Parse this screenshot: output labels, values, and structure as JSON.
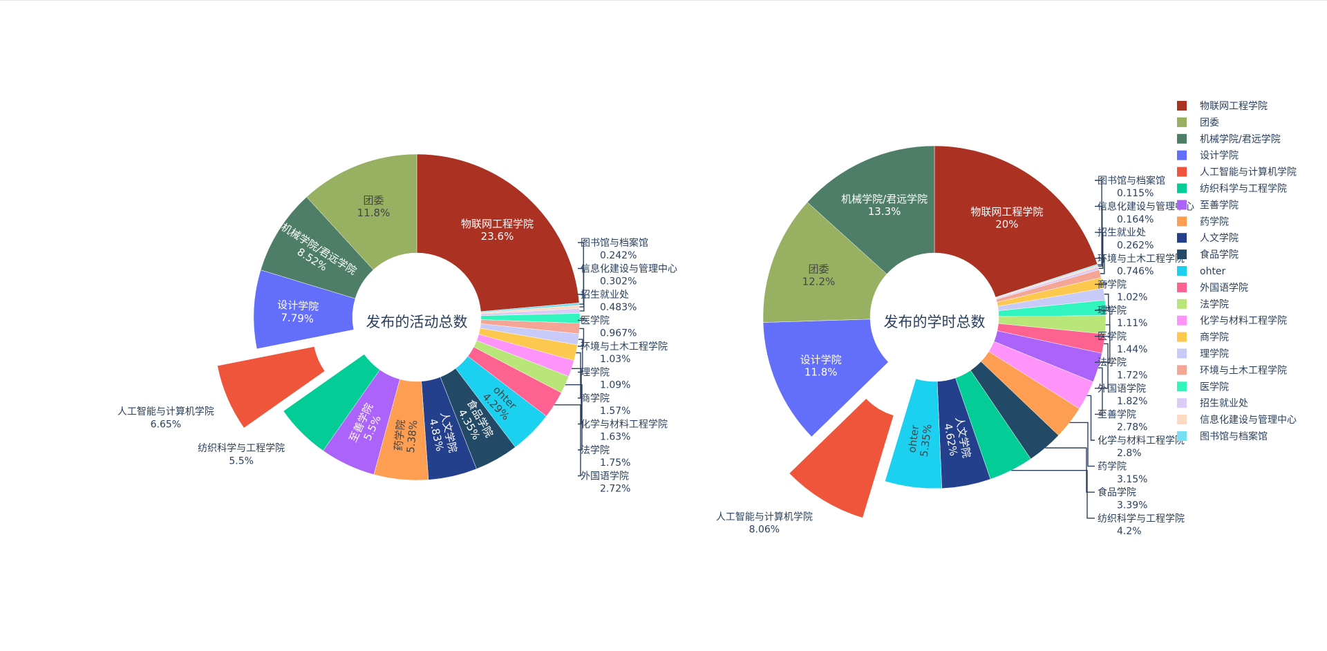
{
  "chart_data": [
    {
      "type": "pie",
      "title": "发布的活动总数",
      "slices": [
        {
          "label": "物联网工程学院",
          "pct": "23.6%",
          "value": 23.6,
          "color": "#AB3123",
          "pos": "inside"
        },
        {
          "label": "图书馆与档案馆",
          "pct": "0.242%",
          "value": 0.242,
          "color": "#76E0F2",
          "pos": "outside"
        },
        {
          "label": "信息化建设与管理中心",
          "pct": "0.302%",
          "value": 0.302,
          "color": "#FED9C2",
          "pos": "outside"
        },
        {
          "label": "招生就业处",
          "pct": "0.483%",
          "value": 0.483,
          "color": "#DCCBF7",
          "pos": "outside"
        },
        {
          "label": "医学院",
          "pct": "0.967%",
          "value": 0.967,
          "color": "#32F5BD",
          "pos": "outside"
        },
        {
          "label": "环境与土木工程学院",
          "pct": "1.03%",
          "value": 1.03,
          "color": "#F4A595",
          "pos": "outside"
        },
        {
          "label": "理学院",
          "pct": "1.09%",
          "value": 1.09,
          "color": "#C8CBF8",
          "pos": "outside"
        },
        {
          "label": "商学院",
          "pct": "1.57%",
          "value": 1.57,
          "color": "#FDC84E",
          "pos": "outside"
        },
        {
          "label": "化学与材料工程学院",
          "pct": "1.63%",
          "value": 1.63,
          "color": "#FE94FA",
          "pos": "outside"
        },
        {
          "label": "法学院",
          "pct": "1.75%",
          "value": 1.75,
          "color": "#B8E679",
          "pos": "outside"
        },
        {
          "label": "外国语学院",
          "pct": "2.72%",
          "value": 2.72,
          "color": "#FE6290",
          "pos": "outside"
        },
        {
          "label": "ohter",
          "pct": "4.29%",
          "value": 4.29,
          "color": "#1CD0F0",
          "pos": "inside"
        },
        {
          "label": "食品学院",
          "pct": "4.35%",
          "value": 4.35,
          "color": "#224A66",
          "pos": "inside"
        },
        {
          "label": "人文学院",
          "pct": "4.83%",
          "value": 4.83,
          "color": "#243F8C",
          "pos": "inside"
        },
        {
          "label": "药学院",
          "pct": "5.38%",
          "value": 5.38,
          "color": "#FD9E53",
          "pos": "inside"
        },
        {
          "label": "至善学院",
          "pct": "5.5%",
          "value": 5.5,
          "color": "#AB63FA",
          "pos": "inside"
        },
        {
          "label": "纺织科学与工程学院",
          "pct": "5.5%",
          "value": 5.5,
          "color": "#04CC96",
          "pos": "outside"
        },
        {
          "label": "人工智能与计算机学院",
          "pct": "6.65%",
          "value": 6.65,
          "color": "#EF553B",
          "pos": "outside",
          "pull": true
        },
        {
          "label": "设计学院",
          "pct": "7.79%",
          "value": 7.79,
          "color": "#636EFA",
          "pos": "inside"
        },
        {
          "label": "机械学院/君远学院",
          "pct": "8.52%",
          "value": 8.52,
          "color": "#4E7E67",
          "pos": "inside"
        },
        {
          "label": "团委",
          "pct": "11.8%",
          "value": 11.8,
          "color": "#97B061",
          "pos": "inside"
        }
      ]
    },
    {
      "type": "pie",
      "title": "发布的学时总数",
      "slices": [
        {
          "label": "物联网工程学院",
          "pct": "20%",
          "value": 20.0,
          "color": "#AB3123",
          "pos": "inside"
        },
        {
          "label": "图书馆与档案馆",
          "pct": "0.115%",
          "value": 0.115,
          "color": "#76E0F2",
          "pos": "outside"
        },
        {
          "label": "信息化建设与管理中心",
          "pct": "0.164%",
          "value": 0.164,
          "color": "#FED9C2",
          "pos": "outside"
        },
        {
          "label": "招生就业处",
          "pct": "0.262%",
          "value": 0.262,
          "color": "#DCCBF7",
          "pos": "outside"
        },
        {
          "label": "环境与土木工程学院",
          "pct": "0.746%",
          "value": 0.746,
          "color": "#F4A595",
          "pos": "outside"
        },
        {
          "label": "商学院",
          "pct": "1.02%",
          "value": 1.02,
          "color": "#FDC84E",
          "pos": "outside"
        },
        {
          "label": "理学院",
          "pct": "1.11%",
          "value": 1.11,
          "color": "#C8CBF8",
          "pos": "outside"
        },
        {
          "label": "医学院",
          "pct": "1.44%",
          "value": 1.44,
          "color": "#32F5BD",
          "pos": "outside"
        },
        {
          "label": "法学院",
          "pct": "1.72%",
          "value": 1.72,
          "color": "#B8E679",
          "pos": "outside"
        },
        {
          "label": "外国语学院",
          "pct": "1.82%",
          "value": 1.82,
          "color": "#FE6290",
          "pos": "outside"
        },
        {
          "label": "至善学院",
          "pct": "2.78%",
          "value": 2.78,
          "color": "#AB63FA",
          "pos": "outside"
        },
        {
          "label": "化学与材料工程学院",
          "pct": "2.8%",
          "value": 2.8,
          "color": "#FE94FA",
          "pos": "outside"
        },
        {
          "label": "药学院",
          "pct": "3.15%",
          "value": 3.15,
          "color": "#FD9E53",
          "pos": "outside"
        },
        {
          "label": "食品学院",
          "pct": "3.39%",
          "value": 3.39,
          "color": "#224A66",
          "pos": "outside"
        },
        {
          "label": "纺织科学与工程学院",
          "pct": "4.2%",
          "value": 4.2,
          "color": "#04CC96",
          "pos": "outside"
        },
        {
          "label": "人文学院",
          "pct": "4.62%",
          "value": 4.62,
          "color": "#243F8C",
          "pos": "inside"
        },
        {
          "label": "ohter",
          "pct": "5.35%",
          "value": 5.35,
          "color": "#1CD0F0",
          "pos": "inside"
        },
        {
          "label": "人工智能与计算机学院",
          "pct": "8.06%",
          "value": 8.06,
          "color": "#EF553B",
          "pos": "outside",
          "pull": true
        },
        {
          "label": "设计学院",
          "pct": "11.8%",
          "value": 11.8,
          "color": "#636EFA",
          "pos": "inside"
        },
        {
          "label": "团委",
          "pct": "12.2%",
          "value": 12.2,
          "color": "#97B061",
          "pos": "inside"
        },
        {
          "label": "机械学院/君远学院",
          "pct": "13.3%",
          "value": 13.3,
          "color": "#4E7E67",
          "pos": "inside"
        }
      ]
    }
  ],
  "legend": {
    "placement": "right",
    "items": [
      {
        "label": "物联网工程学院",
        "color": "#AB3123"
      },
      {
        "label": "团委",
        "color": "#97B061"
      },
      {
        "label": "机械学院/君远学院",
        "color": "#4E7E67"
      },
      {
        "label": "设计学院",
        "color": "#636EFA"
      },
      {
        "label": "人工智能与计算机学院",
        "color": "#EF553B"
      },
      {
        "label": "纺织科学与工程学院",
        "color": "#04CC96"
      },
      {
        "label": "至善学院",
        "color": "#AB63FA"
      },
      {
        "label": "药学院",
        "color": "#FD9E53"
      },
      {
        "label": "人文学院",
        "color": "#243F8C"
      },
      {
        "label": "食品学院",
        "color": "#224A66"
      },
      {
        "label": "ohter",
        "color": "#1CD0F0"
      },
      {
        "label": "外国语学院",
        "color": "#FE6290"
      },
      {
        "label": "法学院",
        "color": "#B8E679"
      },
      {
        "label": "化学与材料工程学院",
        "color": "#FE94FA"
      },
      {
        "label": "商学院",
        "color": "#FDC84E"
      },
      {
        "label": "理学院",
        "color": "#C8CBF8"
      },
      {
        "label": "环境与土木工程学院",
        "color": "#F4A595"
      },
      {
        "label": "医学院",
        "color": "#32F5BD"
      },
      {
        "label": "招生就业处",
        "color": "#DCCBF7"
      },
      {
        "label": "信息化建设与管理中心",
        "color": "#FED9C2"
      },
      {
        "label": "图书馆与档案馆",
        "color": "#76E0F2"
      }
    ]
  }
}
